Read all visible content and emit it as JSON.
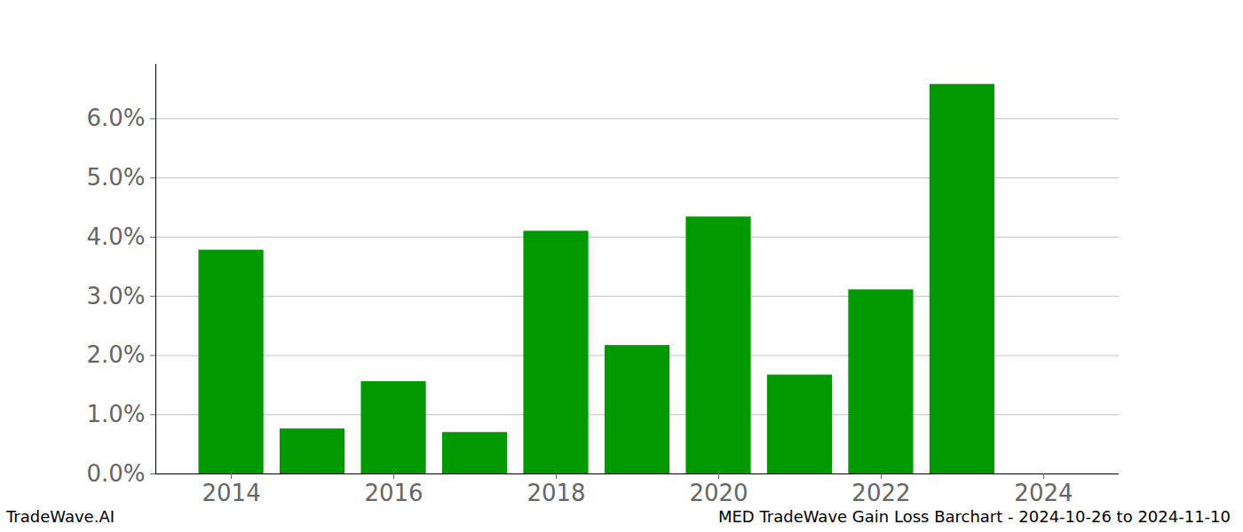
{
  "chart_data": {
    "type": "bar",
    "title": "MED TradeWave Gain Loss Barchart - 2024-10-26 to 2024-11-10",
    "caption": "TradeWave.AI",
    "x": [
      2014,
      2015,
      2016,
      2017,
      2018,
      2019,
      2020,
      2021,
      2022,
      2023,
      2024
    ],
    "values": [
      3.78,
      0.76,
      1.56,
      0.7,
      4.1,
      2.17,
      4.34,
      1.67,
      3.11,
      6.58,
      null
    ],
    "color": "#009900",
    "xlim": [
      2013.07,
      2024.93
    ],
    "xticks": [
      2014,
      2016,
      2018,
      2020,
      2022,
      2024
    ],
    "ylim": [
      0,
      6.92
    ],
    "yticks": [
      {
        "value": 0,
        "label": "0.0%"
      },
      {
        "value": 1,
        "label": "1.0%"
      },
      {
        "value": 2,
        "label": "2.0%"
      },
      {
        "value": 3,
        "label": "3.0%"
      },
      {
        "value": 4,
        "label": "4.0%"
      },
      {
        "value": 5,
        "label": "5.0%"
      },
      {
        "value": 6,
        "label": "6.0%"
      }
    ],
    "grid": true
  }
}
